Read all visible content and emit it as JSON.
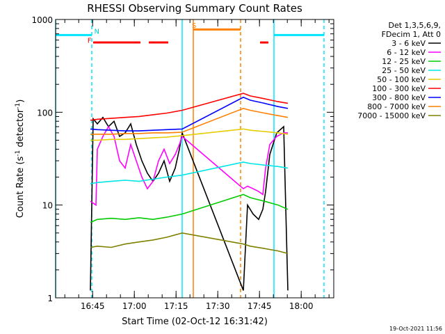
{
  "chart_data": {
    "type": "line",
    "title": "RHESSI Observing Summary Count Rates",
    "xlabel": "Start Time (02-Oct-12 16:31:42)",
    "ylabel": "Count Rate (s⁻¹ detector⁻¹)",
    "ylabel_parts": {
      "main": "Count Rate (s",
      "sup1": "-1",
      "mid": " detector",
      "sup2": "-1",
      "end": ")"
    },
    "x_unit": "minutes after 16:31:42",
    "xlim": [
      0,
      100
    ],
    "ylim": [
      1,
      1000
    ],
    "yscale": "log",
    "x_ticks": [
      {
        "label": "16:45",
        "value": 13.3
      },
      {
        "label": "17:00",
        "value": 28.3
      },
      {
        "label": "17:15",
        "value": 43.3
      },
      {
        "label": "17:30",
        "value": 58.3
      },
      {
        "label": "17:45",
        "value": 73.3
      },
      {
        "label": "18:00",
        "value": 88.3
      }
    ],
    "y_ticks": [
      {
        "label": "1",
        "value": 1
      },
      {
        "label": "10",
        "value": 10
      },
      {
        "label": "100",
        "value": 100
      },
      {
        "label": "1000",
        "value": 1000
      }
    ],
    "legend_header": [
      "Det 1,3,5,6,9,",
      "FDecim 1, Att 0"
    ],
    "legend_position": "top-right outside",
    "series": [
      {
        "name": "3 - 6 keV",
        "color": "#000000",
        "x": [
          12.5,
          13.5,
          15,
          17,
          19,
          21,
          23,
          25,
          27,
          29,
          31,
          33,
          35,
          37,
          39,
          41,
          43,
          44.5,
          45.5,
          67.5,
          69,
          71,
          73,
          74.5,
          75.5,
          77,
          79.5,
          82,
          83.5
        ],
        "y": [
          1.2,
          85,
          75,
          88,
          70,
          80,
          55,
          60,
          75,
          45,
          30,
          22,
          18,
          22,
          30,
          18,
          25,
          40,
          60,
          1.2,
          10,
          8,
          7,
          9,
          14,
          35,
          60,
          70,
          1.2
        ]
      },
      {
        "name": "6 - 12 keV",
        "color": "#ff00ff",
        "x": [
          12.5,
          14.5,
          15,
          17,
          19,
          21,
          23,
          25,
          27,
          29,
          31,
          33,
          35,
          37,
          39,
          41,
          43,
          44.5,
          45.5,
          67.5,
          69,
          71,
          73,
          74.5,
          75.5,
          77,
          79.5,
          82,
          83.5
        ],
        "y": [
          11,
          10,
          40,
          55,
          70,
          55,
          30,
          25,
          45,
          30,
          20,
          15,
          18,
          30,
          40,
          28,
          35,
          45,
          55,
          15,
          16,
          15,
          14,
          13,
          25,
          45,
          55,
          60,
          60
        ]
      },
      {
        "name": "12 - 25 keV",
        "color": "#00cc00",
        "x": [
          12.5,
          15,
          20,
          25,
          30,
          35,
          40,
          45.5,
          67.5,
          70,
          75,
          80,
          83.5
        ],
        "y": [
          6.5,
          7,
          7.2,
          7,
          7.3,
          7,
          7.4,
          8,
          13,
          12,
          11,
          10,
          9
        ]
      },
      {
        "name": "25 - 50 keV",
        "color": "#00e5e5",
        "x": [
          12.5,
          15,
          20,
          25,
          30,
          35,
          40,
          45.5,
          67.5,
          70,
          75,
          80,
          83.5
        ],
        "y": [
          17,
          17.5,
          18,
          18.5,
          18,
          19,
          20,
          21,
          29,
          28,
          27,
          26,
          25
        ]
      },
      {
        "name": "50 - 100 keV",
        "color": "#e5cc00",
        "x": [
          12.5,
          15,
          20,
          25,
          30,
          35,
          40,
          45.5,
          67.5,
          70,
          75,
          80,
          83.5
        ],
        "y": [
          50,
          50,
          51,
          51,
          52,
          53,
          54,
          56,
          66,
          64,
          62,
          60,
          58
        ]
      },
      {
        "name": "100 - 300 keV",
        "color": "#ff0000",
        "x": [
          12.5,
          15,
          20,
          25,
          30,
          35,
          40,
          45.5,
          67.5,
          70,
          75,
          80,
          83.5
        ],
        "y": [
          82,
          84,
          86,
          88,
          90,
          94,
          98,
          105,
          160,
          150,
          140,
          130,
          125
        ]
      },
      {
        "name": "300 - 800 keV",
        "color": "#0000ff",
        "x": [
          12.5,
          15,
          20,
          25,
          30,
          35,
          40,
          45.5,
          67.5,
          70,
          75,
          80,
          83.5
        ],
        "y": [
          66,
          65,
          64,
          63,
          63,
          64,
          65,
          66,
          145,
          135,
          125,
          115,
          110
        ]
      },
      {
        "name": "800 - 7000 keV",
        "color": "#ff8000",
        "x": [
          12.5,
          15,
          20,
          25,
          30,
          35,
          40,
          45.5,
          67.5,
          70,
          75,
          80,
          83.5
        ],
        "y": [
          58,
          58,
          58,
          59,
          59,
          60,
          60,
          61,
          110,
          105,
          98,
          92,
          88
        ]
      },
      {
        "name": "7000 - 15000 keV",
        "color": "#808000",
        "x": [
          12.5,
          15,
          20,
          25,
          30,
          35,
          40,
          45.5,
          67.5,
          70,
          75,
          80,
          83.5
        ],
        "y": [
          3.5,
          3.6,
          3.5,
          3.8,
          4.0,
          4.2,
          4.5,
          5.0,
          3.8,
          3.6,
          3.4,
          3.2,
          3.0
        ]
      }
    ],
    "annotations": [
      {
        "text": "N",
        "x": 14.8,
        "y": 700,
        "color": "#00cccc"
      },
      {
        "text": "F",
        "x": 12.2,
        "y": 560,
        "color": "#ff0000"
      },
      {
        "text": "S",
        "x": 49.8,
        "y": 810,
        "color": "#ff8000"
      }
    ],
    "flag_bars": [
      {
        "name": "night",
        "color": "#00e5ff",
        "segments": [
          [
            0,
            13
          ],
          [
            78.5,
            96.5
          ]
        ],
        "y": 680
      },
      {
        "name": "flare",
        "color": "#ff0000",
        "segments": [
          [
            13.5,
            30.5
          ],
          [
            33.5,
            40.5
          ],
          [
            73.5,
            76.5
          ]
        ],
        "y": 565
      },
      {
        "name": "saa",
        "color": "#ff8000",
        "segments": [
          [
            49.5,
            66.5
          ]
        ],
        "y": 780
      }
    ],
    "vlines": [
      {
        "x": 0,
        "color": "#00e5ff",
        "dash": false
      },
      {
        "x": 13,
        "color": "#00e5ff",
        "dash": true
      },
      {
        "x": 45.5,
        "color": "#00e5ff",
        "dash": false
      },
      {
        "x": 49.5,
        "color": "#ff8000",
        "dash": false
      },
      {
        "x": 66.5,
        "color": "#ff8000",
        "dash": true
      },
      {
        "x": 78.5,
        "color": "#00e5ff",
        "dash": false
      },
      {
        "x": 96.5,
        "color": "#00e5ff",
        "dash": true
      }
    ],
    "footer_date": "19-Oct-2021 11:56"
  }
}
